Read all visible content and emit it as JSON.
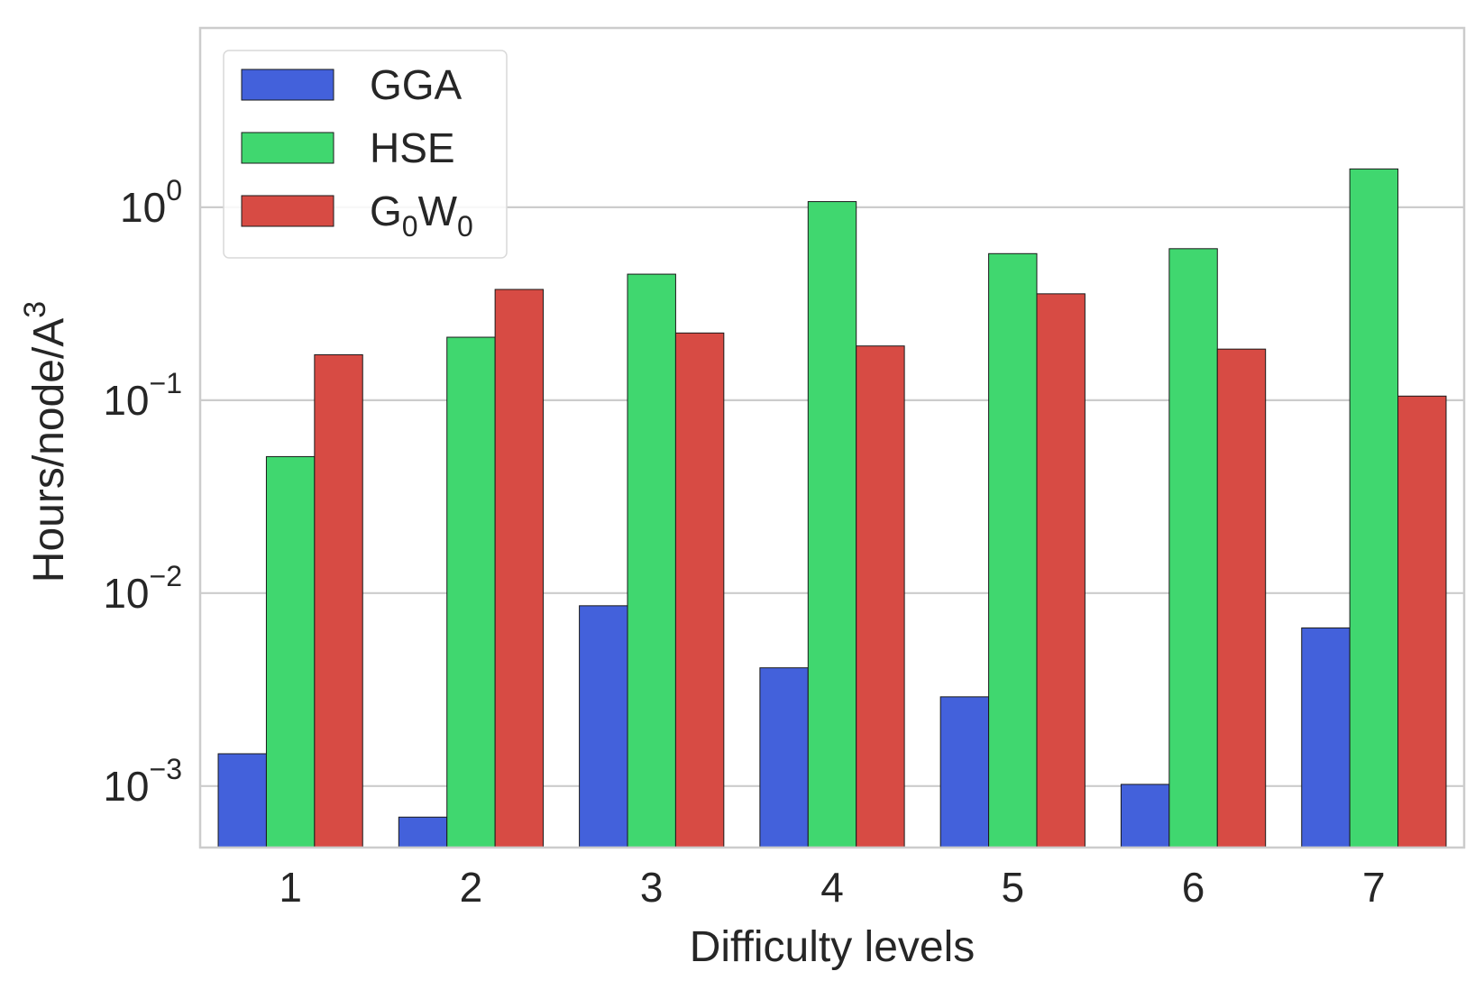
{
  "chart_data": {
    "type": "bar",
    "xlabel": "Difficulty levels",
    "ylabel": {
      "base": "Hours/node/A",
      "sup": "3"
    },
    "yscale": "log",
    "ylim": [
      0.00048,
      8.5
    ],
    "yticks": [
      {
        "value": 0.001,
        "base": "10",
        "exp": "−3"
      },
      {
        "value": 0.01,
        "base": "10",
        "exp": "−2"
      },
      {
        "value": 0.1,
        "base": "10",
        "exp": "−1"
      },
      {
        "value": 1,
        "base": "10",
        "exp": "0"
      }
    ],
    "grid": "horizontal",
    "legend_position": "top-left",
    "categories": [
      "1",
      "2",
      "3",
      "4",
      "5",
      "6",
      "7"
    ],
    "series": [
      {
        "name": "GGA",
        "label_parts": [
          {
            "text": "GGA"
          }
        ],
        "color": "#4361DB",
        "values": [
          0.00147,
          0.00069,
          0.0086,
          0.0041,
          0.0029,
          0.00102,
          0.0066
        ]
      },
      {
        "name": "HSE",
        "label_parts": [
          {
            "text": "HSE"
          }
        ],
        "color": "#40D76F",
        "values": [
          0.051,
          0.212,
          0.45,
          1.07,
          0.575,
          0.61,
          1.58
        ]
      },
      {
        "name": "G0W0",
        "label_parts": [
          {
            "text": "G"
          },
          {
            "text": "0",
            "sub": true
          },
          {
            "text": "W"
          },
          {
            "text": "0",
            "sub": true
          }
        ],
        "color": "#D74B44",
        "values": [
          0.172,
          0.375,
          0.223,
          0.191,
          0.356,
          0.184,
          0.105
        ]
      }
    ]
  }
}
